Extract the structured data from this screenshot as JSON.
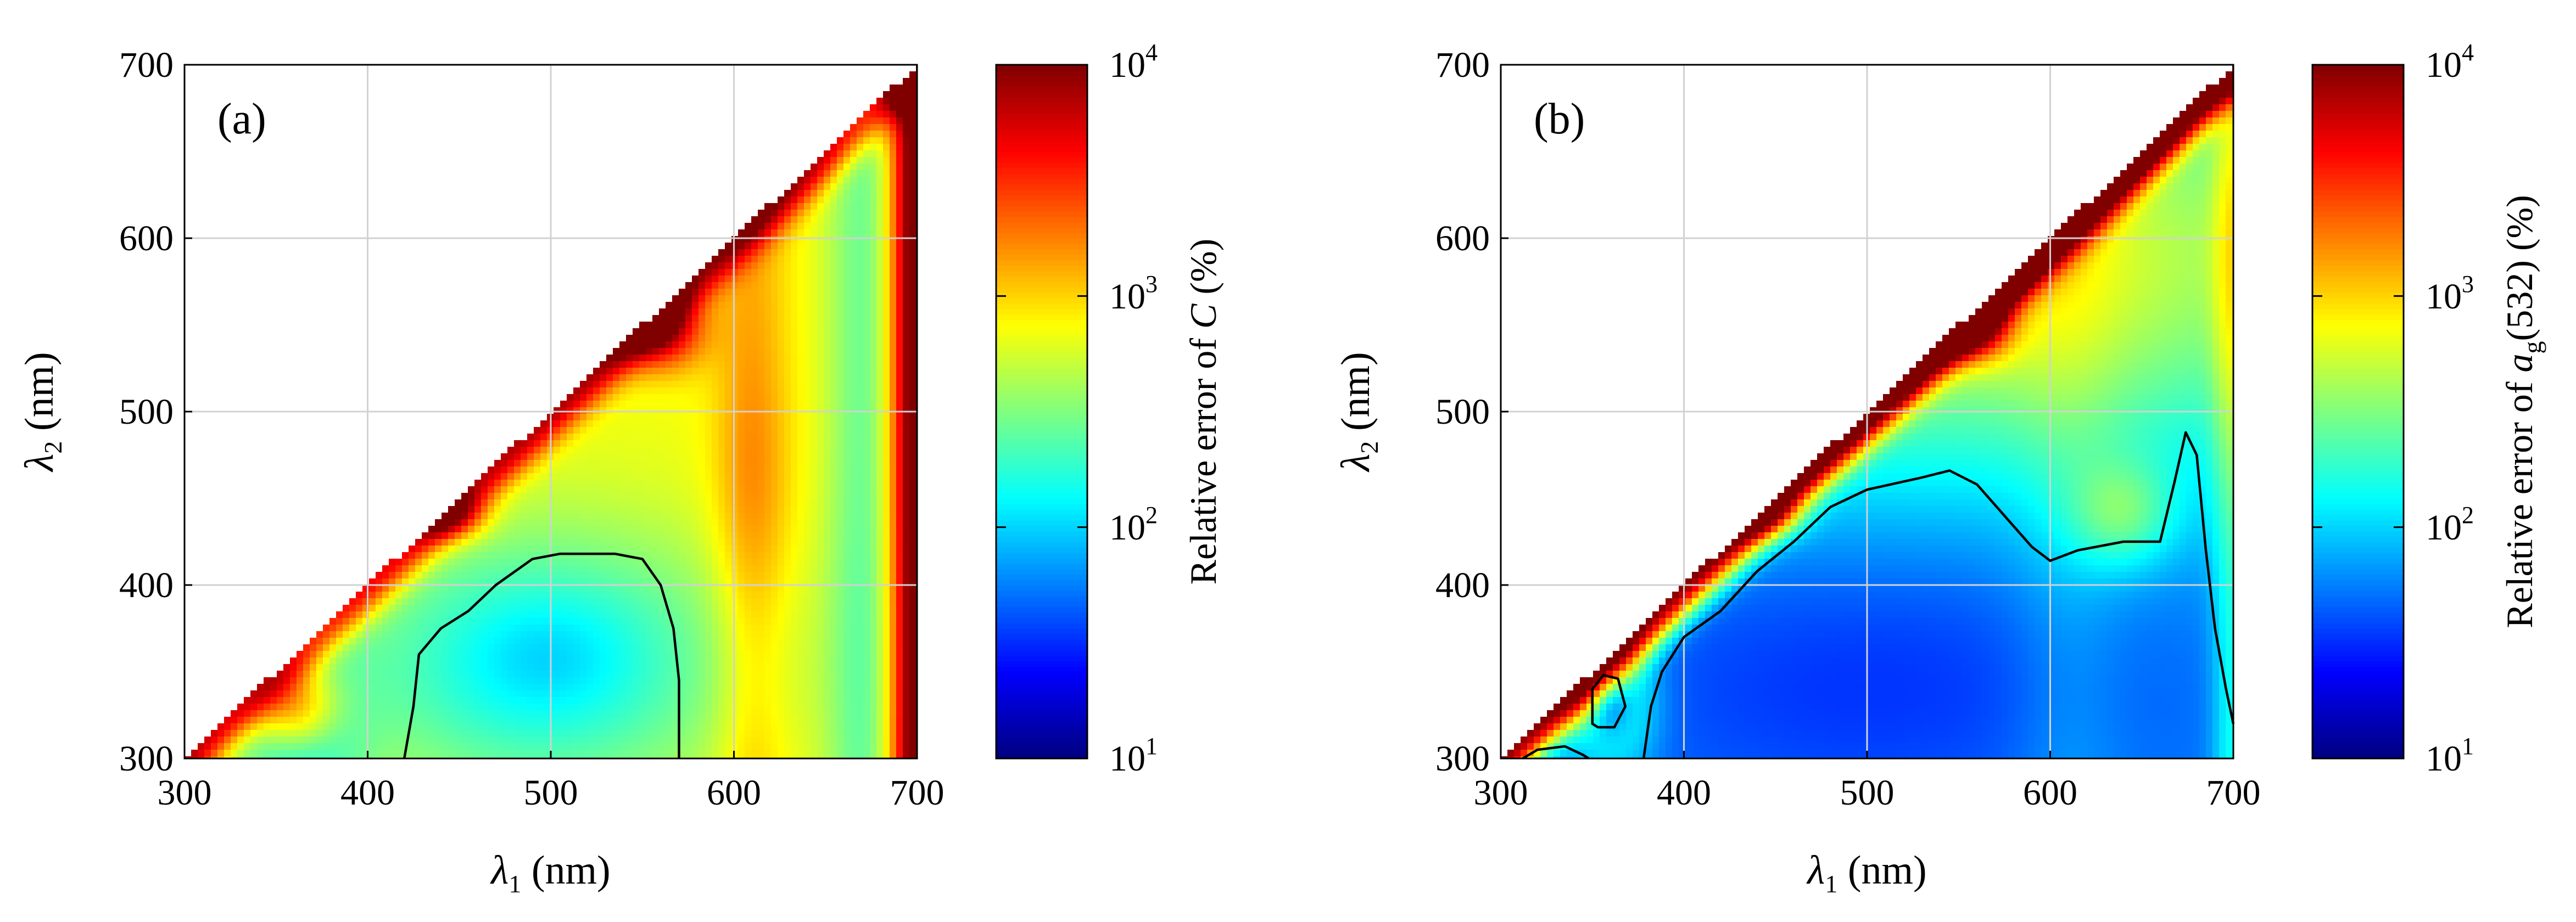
{
  "chart_data": [
    {
      "type": "heatmap",
      "panel_tag": "(a)",
      "x_label": {
        "symbol": "λ",
        "sub": "1",
        "unit": " (nm)"
      },
      "y_label": {
        "symbol": "λ",
        "sub": "2",
        "unit": " (nm)"
      },
      "xlim": [
        300,
        700
      ],
      "ylim": [
        300,
        700
      ],
      "xticks": [
        "300",
        "400",
        "500",
        "600",
        "700"
      ],
      "yticks": [
        "300",
        "400",
        "500",
        "600",
        "700"
      ],
      "grid": true,
      "domain": "lower-right triangle (λ2 < λ1)",
      "colorbar": {
        "scale": "log",
        "range": [
          10,
          10000
        ],
        "ticks": [
          {
            "base": "10",
            "exp": "1"
          },
          {
            "base": "10",
            "exp": "2"
          },
          {
            "base": "10",
            "exp": "3"
          },
          {
            "base": "10",
            "exp": "4"
          }
        ],
        "label": {
          "prefix": "Relative error of ",
          "var": "C",
          "sub": "",
          "suffix": " (%)"
        }
      },
      "background_exponent": 2.85,
      "diagonal_ridge_exponent": 3.9,
      "features": [
        {
          "kind": "vertical",
          "x": 700,
          "sigma": 10,
          "amp": 1.4
        },
        {
          "kind": "vertical",
          "x": 670,
          "sigma": 14,
          "amp": -0.4
        },
        {
          "kind": "vertical",
          "x": 610,
          "sigma": 14,
          "amp": 0.25
        },
        {
          "kind": "spot",
          "x": 360,
          "y": 320,
          "sx": 24,
          "sy": 38,
          "amp": -0.95
        },
        {
          "kind": "spot",
          "x": 360,
          "y": 330,
          "sx": 18,
          "sy": 20,
          "amp": 1.25
        },
        {
          "kind": "spot",
          "x": 560,
          "y": 548,
          "sx": 16,
          "sy": 16,
          "amp": 1.0
        },
        {
          "kind": "spot",
          "x": 445,
          "y": 440,
          "sx": 14,
          "sy": 10,
          "amp": 0.7
        },
        {
          "kind": "spot",
          "x": 495,
          "y": 355,
          "sx": 75,
          "sy": 55,
          "amp": -0.75
        },
        {
          "kind": "spot",
          "x": 500,
          "y": 360,
          "sx": 28,
          "sy": 22,
          "amp": -0.1
        },
        {
          "kind": "spot",
          "x": 610,
          "y": 455,
          "sx": 16,
          "sy": 55,
          "amp": 0.15
        }
      ],
      "contour_100pct": [
        [
          420,
          300
        ],
        [
          425,
          330
        ],
        [
          428,
          360
        ],
        [
          440,
          375
        ],
        [
          455,
          385
        ],
        [
          470,
          400
        ],
        [
          490,
          415
        ],
        [
          505,
          418
        ],
        [
          535,
          418
        ],
        [
          550,
          415
        ],
        [
          560,
          400
        ],
        [
          567,
          375
        ],
        [
          570,
          345
        ],
        [
          570,
          300
        ]
      ]
    },
    {
      "type": "heatmap",
      "panel_tag": "(b)",
      "x_label": {
        "symbol": "λ",
        "sub": "1",
        "unit": " (nm)"
      },
      "y_label": {
        "symbol": "λ",
        "sub": "2",
        "unit": " (nm)"
      },
      "xlim": [
        300,
        700
      ],
      "ylim": [
        300,
        700
      ],
      "xticks": [
        "300",
        "400",
        "500",
        "600",
        "700"
      ],
      "yticks": [
        "300",
        "400",
        "500",
        "600",
        "700"
      ],
      "grid": true,
      "domain": "lower-right triangle (λ2 < λ1)",
      "colorbar": {
        "scale": "log",
        "range": [
          10,
          10000
        ],
        "ticks": [
          {
            "base": "10",
            "exp": "1"
          },
          {
            "base": "10",
            "exp": "2"
          },
          {
            "base": "10",
            "exp": "3"
          },
          {
            "base": "10",
            "exp": "4"
          }
        ],
        "label": {
          "prefix": "Relative error of ",
          "var": "a",
          "sub": "g",
          "suffix": "(532) (%)"
        }
      },
      "background_exponent": 1.75,
      "diagonal_ridge_exponent": 4.0,
      "features": [
        {
          "kind": "vertical",
          "x": 700,
          "sigma": 8,
          "amp": 0.45
        },
        {
          "kind": "vertical",
          "x": 610,
          "sigma": 22,
          "amp": 0.15
        },
        {
          "kind": "spot",
          "x": 540,
          "y": 590,
          "sx": 200,
          "sy": 90,
          "amp": 1.1
        },
        {
          "kind": "spot",
          "x": 500,
          "y": 350,
          "sx": 110,
          "sy": 60,
          "amp": -0.25
        },
        {
          "kind": "spot",
          "x": 560,
          "y": 548,
          "sx": 14,
          "sy": 14,
          "amp": 1.0
        },
        {
          "kind": "spot",
          "x": 445,
          "y": 440,
          "sx": 14,
          "sy": 10,
          "amp": 0.6
        },
        {
          "kind": "spot",
          "x": 360,
          "y": 332,
          "sx": 16,
          "sy": 26,
          "amp": 0.9
        },
        {
          "kind": "spot",
          "x": 360,
          "y": 332,
          "sx": 9,
          "sy": 15,
          "amp": -0.8
        },
        {
          "kind": "spot",
          "x": 640,
          "y": 440,
          "sx": 20,
          "sy": 22,
          "amp": 0.5
        }
      ],
      "contour_100pct": [
        [
          378,
          300
        ],
        [
          382,
          330
        ],
        [
          388,
          350
        ],
        [
          400,
          370
        ],
        [
          420,
          385
        ],
        [
          440,
          408
        ],
        [
          460,
          425
        ],
        [
          480,
          445
        ],
        [
          500,
          455
        ],
        [
          530,
          462
        ],
        [
          545,
          466
        ],
        [
          560,
          458
        ],
        [
          575,
          440
        ],
        [
          590,
          422
        ],
        [
          600,
          414
        ],
        [
          615,
          420
        ],
        [
          640,
          425
        ],
        [
          660,
          425
        ],
        [
          668,
          460
        ],
        [
          674,
          488
        ],
        [
          680,
          475
        ],
        [
          685,
          420
        ],
        [
          690,
          375
        ],
        [
          696,
          340
        ],
        [
          700,
          320
        ]
      ],
      "contour_small_loop": [
        [
          350,
          320
        ],
        [
          350,
          340
        ],
        [
          356,
          348
        ],
        [
          364,
          346
        ],
        [
          368,
          330
        ],
        [
          362,
          318
        ],
        [
          353,
          318
        ]
      ],
      "contour_corner": [
        [
          312,
          300
        ],
        [
          320,
          305
        ],
        [
          335,
          307
        ],
        [
          345,
          302
        ],
        [
          348,
          300
        ]
      ]
    }
  ]
}
